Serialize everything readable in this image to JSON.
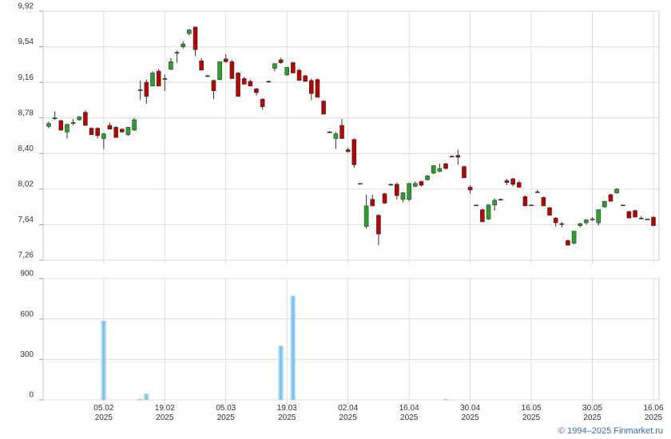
{
  "chart_data": [
    {
      "type": "candlestick",
      "up_color": "#2e9e2e",
      "down_color": "#b30000",
      "ylim": [
        7.26,
        9.92
      ],
      "yticks": [
        {
          "value": 7.26,
          "label": "7,26"
        },
        {
          "value": 7.64,
          "label": "7,64"
        },
        {
          "value": 8.02,
          "label": "8,02"
        },
        {
          "value": 8.4,
          "label": "8,40"
        },
        {
          "value": 8.78,
          "label": "8,78"
        },
        {
          "value": 9.16,
          "label": "9,16"
        },
        {
          "value": 9.54,
          "label": "9,54"
        },
        {
          "value": 9.92,
          "label": "9,92"
        }
      ],
      "grid": true,
      "ohlc": [
        [
          8.69,
          8.74,
          8.67,
          8.72
        ],
        [
          8.78,
          8.85,
          8.76,
          8.78
        ],
        [
          8.75,
          8.76,
          8.64,
          8.65
        ],
        [
          8.63,
          8.72,
          8.56,
          8.71
        ],
        [
          8.73,
          8.77,
          8.7,
          8.73
        ],
        [
          8.76,
          8.8,
          8.75,
          8.79
        ],
        [
          8.84,
          8.86,
          8.7,
          8.7
        ],
        [
          8.67,
          8.68,
          8.6,
          8.6
        ],
        [
          8.67,
          8.68,
          8.56,
          8.59
        ],
        [
          8.56,
          8.62,
          8.45,
          8.61
        ],
        [
          8.7,
          8.73,
          8.66,
          8.66
        ],
        [
          8.68,
          8.69,
          8.57,
          8.57
        ],
        [
          8.66,
          8.67,
          8.62,
          8.63
        ],
        [
          8.6,
          8.68,
          8.59,
          8.68
        ],
        [
          8.65,
          8.78,
          8.64,
          8.76
        ],
        [
          9.08,
          9.18,
          8.97,
          9.08
        ],
        [
          9.16,
          9.19,
          8.93,
          9.01
        ],
        [
          9.12,
          9.28,
          9.12,
          9.26
        ],
        [
          9.28,
          9.3,
          9.12,
          9.12
        ],
        [
          9.2,
          9.24,
          9.07,
          9.2
        ],
        [
          9.3,
          9.42,
          9.29,
          9.38
        ],
        [
          9.48,
          9.5,
          9.37,
          9.48
        ],
        [
          9.54,
          9.6,
          9.52,
          9.57
        ],
        [
          9.68,
          9.73,
          9.66,
          9.72
        ],
        [
          9.75,
          9.75,
          9.44,
          9.51
        ],
        [
          9.39,
          9.42,
          9.29,
          9.29
        ],
        [
          9.23,
          9.24,
          9.22,
          9.23
        ],
        [
          9.18,
          9.19,
          8.98,
          9.07
        ],
        [
          9.19,
          9.38,
          9.18,
          9.38
        ],
        [
          9.41,
          9.46,
          9.37,
          9.38
        ],
        [
          9.38,
          9.4,
          9.2,
          9.2
        ],
        [
          9.26,
          9.27,
          9.01,
          9.01
        ],
        [
          9.2,
          9.22,
          9.14,
          9.14
        ],
        [
          9.17,
          9.19,
          9.12,
          9.12
        ],
        [
          9.09,
          9.1,
          9.02,
          9.05
        ],
        [
          8.98,
          8.99,
          8.87,
          8.9
        ],
        [
          9.17,
          9.18,
          9.16,
          9.17
        ],
        [
          9.31,
          9.36,
          9.28,
          9.36
        ],
        [
          9.4,
          9.42,
          9.36,
          9.37
        ],
        [
          9.24,
          9.32,
          9.23,
          9.32
        ],
        [
          9.37,
          9.38,
          9.26,
          9.26
        ],
        [
          9.29,
          9.3,
          9.18,
          9.18
        ],
        [
          9.23,
          9.24,
          9.17,
          9.17
        ],
        [
          9.18,
          9.2,
          8.97,
          9.04
        ],
        [
          9.19,
          9.2,
          9,
          9
        ],
        [
          8.96,
          8.97,
          8.82,
          8.82
        ],
        [
          8.63,
          8.64,
          8.62,
          8.63
        ],
        [
          8.56,
          8.63,
          8.45,
          8.61
        ],
        [
          8.7,
          8.77,
          8.56,
          8.56
        ],
        [
          8.44,
          8.46,
          8.41,
          8.42
        ],
        [
          8.55,
          8.56,
          8.25,
          8.28
        ],
        [
          8.08,
          8.08,
          8.08,
          8.08
        ],
        [
          7.62,
          7.96,
          7.6,
          7.84
        ],
        [
          7.91,
          7.96,
          7.84,
          7.84
        ],
        [
          7.74,
          7.75,
          7.42,
          7.54
        ],
        [
          7.97,
          7.98,
          7.86,
          7.87
        ],
        [
          8.07,
          8.08,
          8.06,
          8.07
        ],
        [
          8.07,
          8.09,
          7.91,
          7.95
        ],
        [
          7.91,
          7.99,
          7.88,
          7.98
        ],
        [
          7.91,
          8.08,
          7.89,
          8.08
        ],
        [
          8.05,
          8.1,
          8.04,
          8.08
        ],
        [
          8.1,
          8.11,
          8.05,
          8.06
        ],
        [
          8.12,
          8.17,
          8.11,
          8.16
        ],
        [
          8.19,
          8.27,
          8.18,
          8.27
        ],
        [
          8.21,
          8.29,
          8.2,
          8.24
        ],
        [
          8.29,
          8.3,
          8.23,
          8.24
        ],
        [
          8.37,
          8.38,
          8.36,
          8.37
        ],
        [
          8.38,
          8.44,
          8.28,
          8.36
        ],
        [
          8.26,
          8.27,
          8.14,
          8.14
        ],
        [
          8.04,
          8.06,
          7.97,
          8.01
        ],
        [
          7.85,
          7.85,
          7.85,
          7.85
        ],
        [
          7.8,
          7.81,
          7.67,
          7.67
        ],
        [
          7.7,
          7.86,
          7.69,
          7.85
        ],
        [
          7.85,
          7.92,
          7.79,
          7.9
        ],
        [
          7.91,
          7.92,
          7.91,
          7.91
        ],
        [
          8.11,
          8.13,
          8.06,
          8.09
        ],
        [
          8.13,
          8.14,
          8.05,
          8.07
        ],
        [
          8.09,
          8.11,
          8.03,
          8.04
        ],
        [
          7.94,
          7.95,
          7.84,
          7.84
        ],
        [
          7.85,
          7.85,
          7.85,
          7.85
        ],
        [
          7.99,
          8.01,
          7.98,
          7.99
        ],
        [
          7.93,
          7.94,
          7.84,
          7.84
        ],
        [
          7.82,
          7.83,
          7.74,
          7.74
        ],
        [
          7.71,
          7.72,
          7.62,
          7.66
        ],
        [
          7.65,
          7.67,
          7.61,
          7.65
        ],
        [
          7.47,
          7.48,
          7.42,
          7.42
        ],
        [
          7.44,
          7.57,
          7.43,
          7.57
        ],
        [
          7.63,
          7.66,
          7.61,
          7.65
        ],
        [
          7.66,
          7.7,
          7.64,
          7.69
        ],
        [
          7.69,
          7.72,
          7.68,
          7.7
        ],
        [
          7.66,
          7.8,
          7.63,
          7.8
        ],
        [
          7.83,
          7.89,
          7.82,
          7.89
        ],
        [
          7.96,
          7.97,
          7.89,
          7.89
        ],
        [
          7.98,
          8.03,
          7.97,
          8.02
        ],
        [
          7.85,
          7.85,
          7.85,
          7.85
        ],
        [
          7.78,
          7.79,
          7.71,
          7.71
        ],
        [
          7.79,
          7.8,
          7.72,
          7.72
        ],
        [
          7.71,
          7.73,
          7.7,
          7.71
        ],
        [
          7.7,
          7.7,
          7.7,
          7.7
        ],
        [
          7.72,
          7.73,
          7.63,
          7.63
        ]
      ]
    },
    {
      "type": "bar",
      "color": "#8ec9ef",
      "ylim": [
        0,
        900
      ],
      "yticks": [
        0,
        300,
        600,
        900
      ],
      "grid": true,
      "categories": [
        null,
        null,
        null,
        null,
        null,
        null,
        null,
        null,
        null,
        "05.02 2025",
        null,
        null,
        null,
        null,
        null,
        null,
        null,
        null,
        null,
        "19.02 2025",
        null,
        null,
        null,
        null,
        null,
        null,
        null,
        null,
        null,
        "05.03 2025",
        null,
        null,
        null,
        null,
        null,
        null,
        null,
        null,
        null,
        "19.03 2025",
        null,
        null,
        null,
        null,
        null,
        null,
        null,
        null,
        null,
        "02.04 2025",
        null,
        null,
        null,
        null,
        null,
        null,
        null,
        null,
        null,
        "16.04 2025",
        null,
        null,
        null,
        null,
        null,
        null,
        null,
        null,
        null,
        "30.04 2025",
        null,
        null,
        null,
        null,
        null,
        null,
        null,
        null,
        null,
        "16.05 2025",
        null,
        null,
        null,
        null,
        null,
        null,
        null,
        null,
        null,
        "30.05 2025",
        null,
        null,
        null,
        null,
        null,
        null,
        null,
        null,
        null,
        "16.06 2025"
      ],
      "values": [
        0,
        0,
        0,
        0,
        0,
        0,
        0,
        0,
        0,
        585,
        0,
        0,
        0,
        0,
        0,
        5,
        45,
        0,
        0,
        0,
        0,
        0,
        0,
        0,
        0,
        0,
        0,
        0,
        0,
        0,
        0,
        0,
        0,
        0,
        0,
        0,
        0,
        0,
        400,
        0,
        770,
        0,
        0,
        0,
        0,
        0,
        0,
        0,
        0,
        0,
        0,
        0,
        0,
        0,
        0,
        0,
        0,
        0,
        0,
        0,
        0,
        0,
        0,
        0,
        0,
        5,
        0,
        0,
        0,
        0,
        0,
        0,
        0,
        0,
        0,
        0,
        0,
        0,
        0,
        0,
        0,
        0,
        0,
        0,
        0,
        0,
        0,
        0,
        0,
        0,
        0,
        0,
        0,
        0,
        0,
        0,
        0,
        0,
        0,
        0
      ]
    }
  ],
  "footer": "© 1994–2025 Finmarket.ru"
}
